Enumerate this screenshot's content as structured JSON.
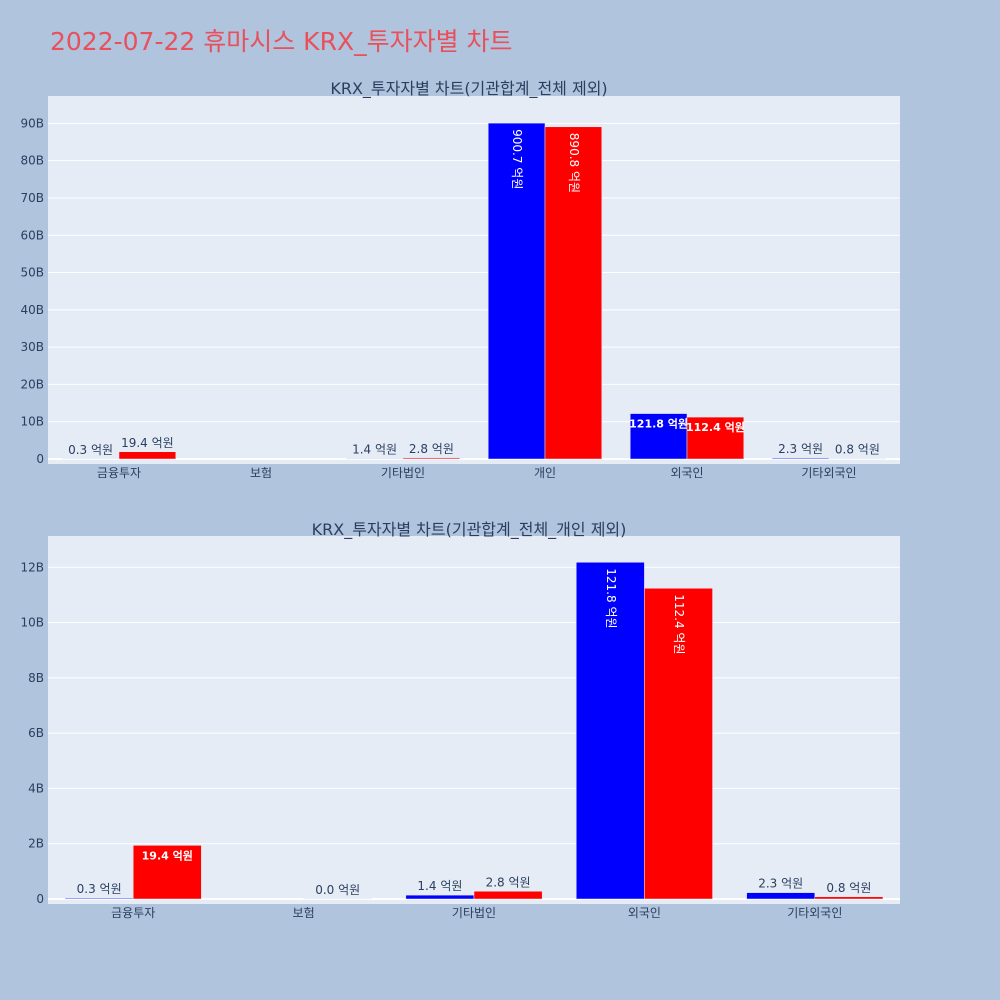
{
  "page_title": "2022-07-22 휴마시스 KRX_투자자별 차트",
  "colors": {
    "background": "#b0c4de",
    "plot_bg": "#e5ecf6",
    "grid": "#ffffff",
    "series_blue": "#0000ff",
    "series_red": "#ff0000",
    "title": "#e8505b",
    "text": "#2a3f5f"
  },
  "chart_data": [
    {
      "type": "bar",
      "title": "KRX_투자자별 차트(기관합계_전체 제외)",
      "categories": [
        "금융투자",
        "보험",
        "기타법인",
        "개인",
        "외국인",
        "기타외국인"
      ],
      "series": [
        {
          "color": "#0000ff",
          "values": [
            30000000,
            null,
            140000000,
            90070000000,
            12180000000,
            230000000
          ],
          "labels": [
            "0.3 억원",
            "",
            "1.4 억원",
            "900.7 억원",
            "121.8 억원",
            "2.3 억원"
          ]
        },
        {
          "color": "#ff0000",
          "values": [
            1940000000,
            null,
            280000000,
            89080000000,
            11240000000,
            80000000
          ],
          "labels": [
            "19.4 억원",
            "",
            "2.8 억원",
            "890.8 억원",
            "112.4 억원",
            "0.8 억원"
          ]
        }
      ],
      "ylim": [
        0,
        96000000000
      ],
      "yticks": [
        0,
        10000000000,
        20000000000,
        30000000000,
        40000000000,
        50000000000,
        60000000000,
        70000000000,
        80000000000,
        90000000000
      ],
      "ytick_labels": [
        "0",
        "10B",
        "20B",
        "30B",
        "40B",
        "50B",
        "60B",
        "70B",
        "80B",
        "90B"
      ],
      "grid": true,
      "legend": "none"
    },
    {
      "type": "bar",
      "title": "KRX_투자자별 차트(기관합계_전체_개인 제외)",
      "categories": [
        "금융투자",
        "보험",
        "기타법인",
        "외국인",
        "기타외국인"
      ],
      "series": [
        {
          "color": "#0000ff",
          "values": [
            30000000,
            null,
            140000000,
            12180000000,
            230000000
          ],
          "labels": [
            "0.3 억원",
            "",
            "1.4 억원",
            "121.8 억원",
            "2.3 억원"
          ]
        },
        {
          "color": "#ff0000",
          "values": [
            1940000000,
            0,
            280000000,
            11240000000,
            80000000
          ],
          "labels": [
            "19.4 억원",
            "0.0 억원",
            "2.8 억원",
            "112.4 억원",
            "0.8 억원"
          ]
        }
      ],
      "ylim": [
        0,
        12950000000
      ],
      "yticks": [
        0,
        2000000000,
        4000000000,
        6000000000,
        8000000000,
        10000000000,
        12000000000
      ],
      "ytick_labels": [
        "0",
        "2B",
        "4B",
        "6B",
        "8B",
        "10B",
        "12B"
      ],
      "grid": true,
      "legend": "none"
    }
  ]
}
